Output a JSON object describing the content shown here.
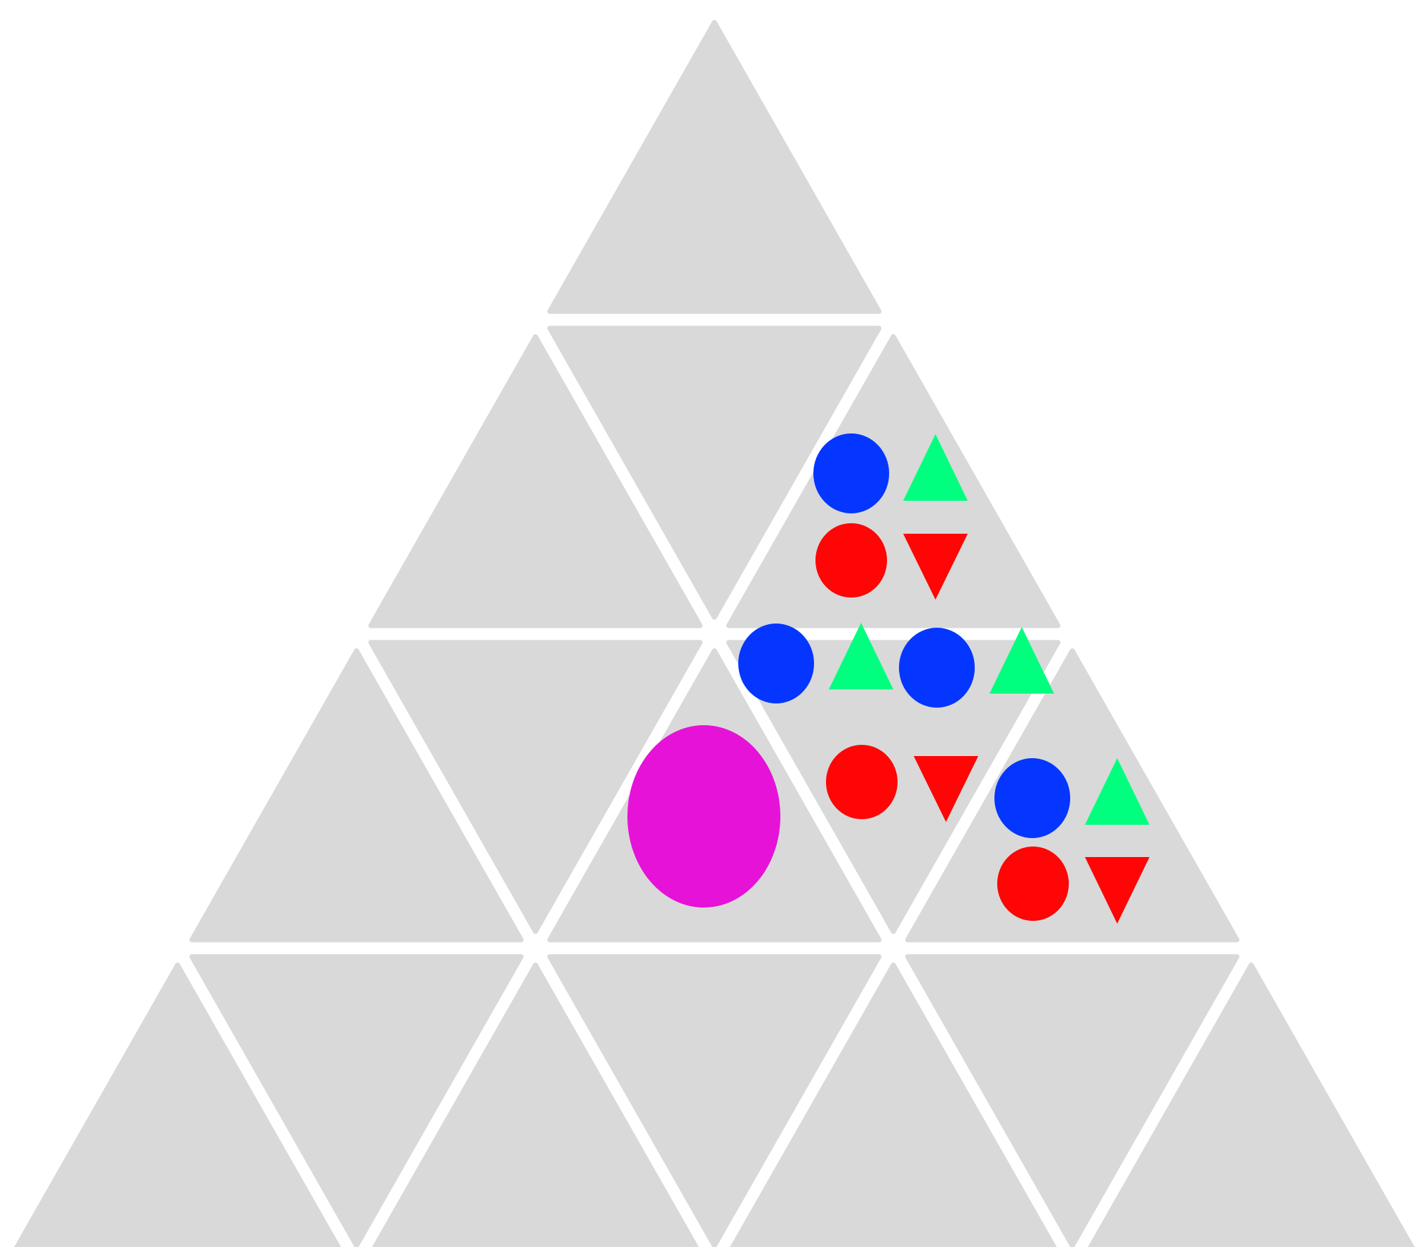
{
  "board": {
    "rows": 4,
    "tile_color": "#d9d9d9",
    "background": "#ffffff"
  },
  "colors": {
    "blue": "#0536ff",
    "green": "#00ff7f",
    "red": "#ff0505",
    "magenta": "#e612d8"
  },
  "tiles_with_pieces": [
    {
      "tile": "row2-col3-up",
      "pieces": [
        "blue-circle",
        "green-triangle-up",
        "red-circle",
        "red-triangle-down"
      ]
    },
    {
      "tile": "row3-col4-down",
      "pieces": [
        "blue-circle",
        "green-triangle-up",
        "blue-circle",
        "green-triangle-up",
        "red-circle",
        "red-triangle-down"
      ]
    },
    {
      "tile": "row3-col5-up",
      "pieces": [
        "blue-circle",
        "green-triangle-up",
        "red-circle",
        "red-triangle-down"
      ]
    },
    {
      "tile": "row3-col3-up",
      "pieces": [
        "magenta-large-circle"
      ]
    }
  ]
}
